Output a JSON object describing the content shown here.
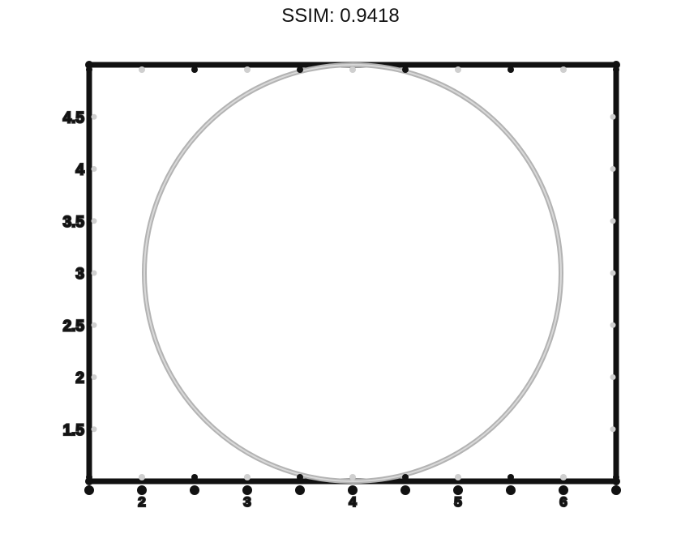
{
  "title": "SSIM: 0.9418",
  "chart_data": {
    "type": "line",
    "title": "SSIM: 0.9418",
    "xlabel": "",
    "ylabel": "",
    "xlim": [
      1.5,
      6.5
    ],
    "ylim": [
      1,
      5
    ],
    "x_ticks": [
      2,
      3,
      4,
      5,
      6
    ],
    "x_tick_labels": [
      "2",
      "3",
      "4",
      "5",
      "6"
    ],
    "y_ticks": [
      1.5,
      2,
      2.5,
      3,
      3.5,
      4,
      4.5
    ],
    "y_tick_labels": [
      "1.5",
      "2",
      "2.5",
      "3",
      "3.5",
      "4",
      "4.5"
    ],
    "grid": false,
    "legend": "none",
    "series": [
      {
        "shape": "circle",
        "center": [
          4,
          3
        ],
        "radius": 2,
        "color": "#b3b3b3"
      }
    ],
    "colors": {
      "axes": "#111111",
      "curve": "#b3b3b3",
      "background": "#ffffff"
    }
  }
}
